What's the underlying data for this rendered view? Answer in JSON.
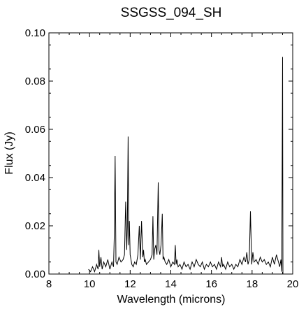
{
  "chart_data": {
    "type": "line",
    "title": "SSGSS_094_SH",
    "xlabel": "Wavelength (microns)",
    "ylabel": "Flux (Jy)",
    "xlim": [
      8,
      20
    ],
    "ylim": [
      0.0,
      0.1
    ],
    "xticks": [
      8,
      10,
      12,
      14,
      16,
      18,
      20
    ],
    "xtick_labels": [
      "8",
      "10",
      "12",
      "14",
      "16",
      "18",
      "20"
    ],
    "yticks": [
      0.0,
      0.02,
      0.04,
      0.06,
      0.08,
      0.1
    ],
    "ytick_labels": [
      "0.00",
      "0.02",
      "0.04",
      "0.06",
      "0.08",
      "0.10"
    ],
    "grid": false,
    "legend": "none",
    "series": [
      {
        "color": "#000000",
        "x": [
          9.95,
          10.05,
          10.15,
          10.25,
          10.35,
          10.42,
          10.46,
          10.5,
          10.56,
          10.62,
          10.7,
          10.8,
          10.9,
          11.0,
          11.1,
          11.18,
          11.22,
          11.26,
          11.3,
          11.36,
          11.45,
          11.55,
          11.65,
          11.72,
          11.78,
          11.83,
          11.86,
          11.9,
          11.93,
          11.96,
          12.0,
          12.04,
          12.08,
          12.15,
          12.22,
          12.3,
          12.38,
          12.45,
          12.5,
          12.56,
          12.62,
          12.66,
          12.7,
          12.74,
          12.8,
          12.9,
          13.0,
          13.08,
          13.12,
          13.16,
          13.2,
          13.26,
          13.32,
          13.38,
          13.42,
          13.46,
          13.52,
          13.58,
          13.62,
          13.66,
          13.72,
          13.8,
          13.9,
          14.0,
          14.1,
          14.18,
          14.22,
          14.26,
          14.3,
          14.36,
          14.45,
          14.55,
          14.65,
          14.75,
          14.85,
          14.95,
          15.05,
          15.15,
          15.25,
          15.35,
          15.45,
          15.55,
          15.65,
          15.75,
          15.85,
          15.95,
          16.05,
          16.15,
          16.25,
          16.35,
          16.45,
          16.5,
          16.55,
          16.6,
          16.7,
          16.8,
          16.9,
          17.0,
          17.1,
          17.2,
          17.3,
          17.4,
          17.5,
          17.6,
          17.68,
          17.74,
          17.8,
          17.86,
          17.92,
          17.98,
          18.04,
          18.1,
          18.2,
          18.3,
          18.4,
          18.5,
          18.6,
          18.7,
          18.8,
          18.9,
          19.0,
          19.1,
          19.2,
          19.3,
          19.36,
          19.42,
          19.46,
          19.5,
          19.52
        ],
        "y": [
          0.002,
          0.001,
          0.003,
          0.001,
          0.004,
          0.002,
          0.01,
          0.003,
          0.007,
          0.002,
          0.005,
          0.003,
          0.006,
          0.002,
          0.005,
          0.003,
          0.016,
          0.049,
          0.005,
          0.004,
          0.007,
          0.005,
          0.006,
          0.008,
          0.03,
          0.01,
          0.02,
          0.057,
          0.012,
          0.022,
          0.008,
          0.006,
          0.004,
          0.003,
          0.005,
          0.004,
          0.008,
          0.02,
          0.006,
          0.022,
          0.007,
          0.01,
          0.005,
          0.006,
          0.004,
          0.005,
          0.006,
          0.008,
          0.024,
          0.006,
          0.01,
          0.012,
          0.008,
          0.038,
          0.01,
          0.008,
          0.012,
          0.025,
          0.006,
          0.007,
          0.005,
          0.004,
          0.006,
          0.003,
          0.005,
          0.004,
          0.012,
          0.004,
          0.006,
          0.003,
          0.004,
          0.002,
          0.005,
          0.003,
          0.004,
          0.002,
          0.005,
          0.003,
          0.006,
          0.004,
          0.003,
          0.005,
          0.002,
          0.004,
          0.003,
          0.005,
          0.003,
          0.004,
          0.002,
          0.005,
          0.003,
          0.007,
          0.003,
          0.004,
          0.002,
          0.005,
          0.003,
          0.004,
          0.002,
          0.004,
          0.003,
          0.006,
          0.004,
          0.007,
          0.005,
          0.009,
          0.004,
          0.006,
          0.026,
          0.004,
          0.009,
          0.005,
          0.006,
          0.004,
          0.007,
          0.005,
          0.006,
          0.004,
          0.005,
          0.003,
          0.007,
          0.004,
          0.008,
          0.005,
          0.003,
          0.006,
          0.001,
          0.09,
          0.0
        ]
      }
    ]
  }
}
